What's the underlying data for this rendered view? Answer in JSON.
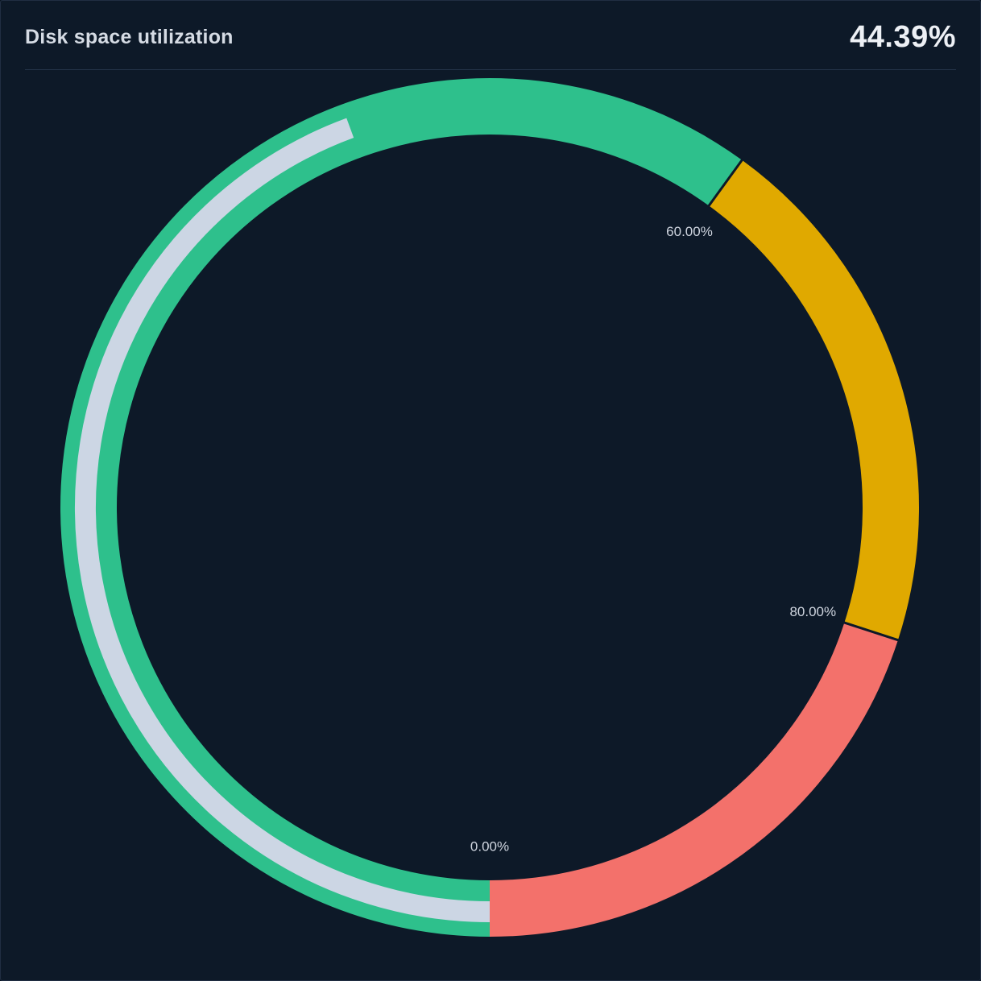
{
  "panel": {
    "title": "Disk space utilization",
    "value": "44.39%"
  },
  "chart_data": {
    "type": "gauge",
    "title": "Disk space utilization",
    "value": 44.39,
    "value_label": "44.39%",
    "unit": "%",
    "min": 0,
    "max": 100,
    "start_angle_deg": 180,
    "sweep_deg": 360,
    "direction": "clockwise",
    "thresholds": [
      {
        "from": 0,
        "to": 60,
        "color": "#2ec08c"
      },
      {
        "from": 60,
        "to": 80,
        "color": "#e0a900"
      },
      {
        "from": 80,
        "to": 100,
        "color": "#f3716b"
      }
    ],
    "threshold_labels": [
      {
        "text": "0.00%",
        "at": 0
      },
      {
        "text": "60.00%",
        "at": 60
      },
      {
        "text": "80.00%",
        "at": 80
      }
    ],
    "progress_color": "#ccd6e4",
    "divider_color": "#0d1928",
    "background_color": "#0d1928"
  }
}
